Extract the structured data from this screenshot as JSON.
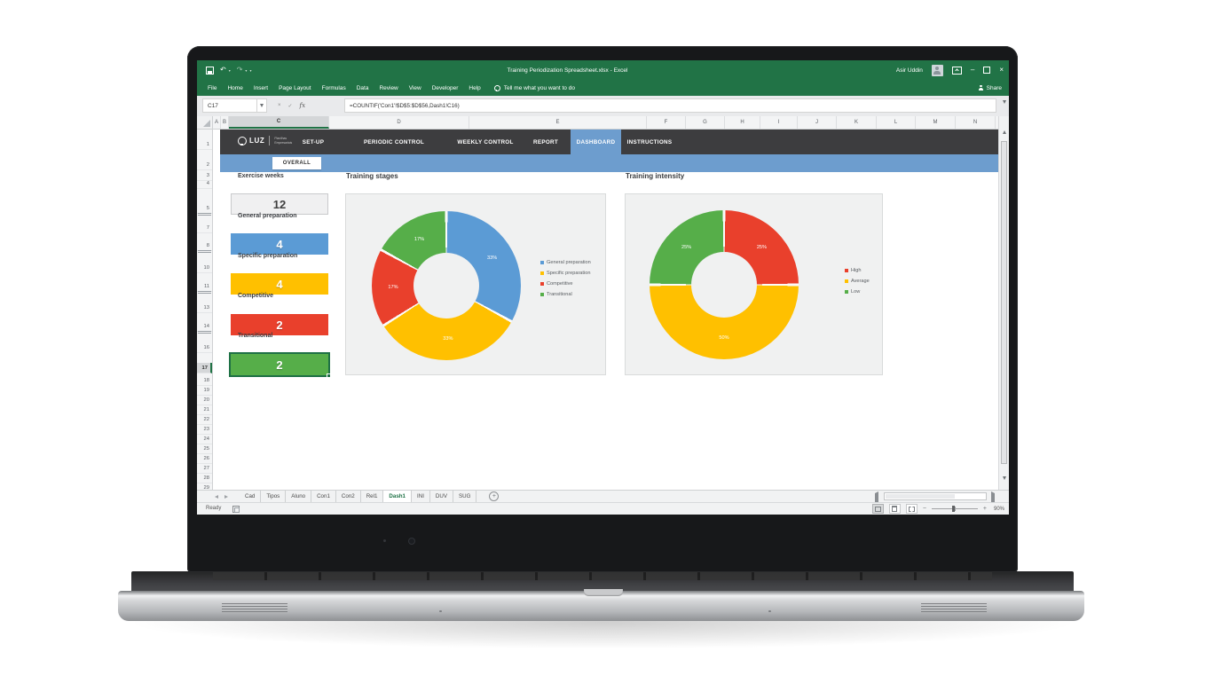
{
  "titlebar": {
    "title": "Training Periodization Spreadsheet.xlsx  -  Excel",
    "user": "Asir Uddin"
  },
  "ribbon": {
    "tabs": [
      "File",
      "Home",
      "Insert",
      "Page Layout",
      "Formulas",
      "Data",
      "Review",
      "View",
      "Developer",
      "Help"
    ],
    "tell_me": "Tell me what you want to do",
    "share": "Share"
  },
  "formula_bar": {
    "name_box": "C17",
    "fx": "fx",
    "formula": "=COUNTIF('Con1'!$D$5:$D$56,Dash1!C16)"
  },
  "grid": {
    "columns": [
      "A",
      "B",
      "C",
      "D",
      "E",
      "F",
      "G",
      "H",
      "I",
      "J",
      "K",
      "L",
      "M",
      "N"
    ],
    "rows": [
      "1",
      "2",
      "3",
      "4",
      "5",
      "7",
      "8",
      "10",
      "11",
      "13",
      "14",
      "16",
      "17",
      "18",
      "19",
      "20",
      "21",
      "22",
      "23",
      "24",
      "25",
      "26",
      "27",
      "28",
      "29"
    ],
    "selected_column": "C",
    "selected_row": "17",
    "hidden_after": [
      "5",
      "8",
      "11",
      "14"
    ]
  },
  "dashboard": {
    "brand": {
      "name": "LUZ",
      "sub_top": "Planilhas",
      "sub_bottom": "Empresariais"
    },
    "nav_tabs": [
      {
        "label": "SET-UP",
        "active": false
      },
      {
        "label": "PERIODIC CONTROL",
        "active": false
      },
      {
        "label": "WEEKLY CONTROL",
        "active": false
      },
      {
        "label": "REPORT",
        "active": false
      },
      {
        "label": "DASHBOARD",
        "active": true
      },
      {
        "label": "INSTRUCTIONS",
        "active": false
      }
    ],
    "active_tab_color": "#6D9DCE",
    "sub_tab": "OVERALL",
    "stats": [
      {
        "label": "Exercise weeks",
        "value": "12",
        "fill": "#f0f0f1",
        "text": "#3f3f3f",
        "selected": false
      },
      {
        "label": "General preparation",
        "value": "4",
        "fill": "#5B9BD5",
        "text": "#ffffff",
        "selected": false
      },
      {
        "label": "Specific preparation",
        "value": "4",
        "fill": "#FFC000",
        "text": "#ffffff",
        "selected": false
      },
      {
        "label": "Competitive",
        "value": "2",
        "fill": "#E9402C",
        "text": "#ffffff",
        "selected": false
      },
      {
        "label": "Transitional",
        "value": "2",
        "fill": "#56AE49",
        "text": "#ffffff",
        "selected": true
      }
    ]
  },
  "chart_data": [
    {
      "type": "donut",
      "title": "Training stages",
      "labels": [
        "General preparation",
        "Specific preparation",
        "Competitive",
        "Transitional"
      ],
      "values": [
        33,
        33,
        17,
        17
      ],
      "data_labels": [
        "33%",
        "33%",
        "17%",
        "17%"
      ],
      "colors": [
        "#5B9BD5",
        "#FFC000",
        "#E9402C",
        "#56AE49"
      ],
      "legend_position": "right"
    },
    {
      "type": "donut",
      "title": "Training intensity",
      "labels": [
        "High",
        "Average",
        "Low"
      ],
      "values": [
        25,
        50,
        25
      ],
      "data_labels": [
        "25%",
        "50%",
        "25%"
      ],
      "colors": [
        "#E9402C",
        "#FFC000",
        "#56AE49"
      ],
      "legend_position": "right"
    }
  ],
  "sheet_tabs": {
    "items": [
      "Cad",
      "Tipos",
      "Aluno",
      "Con1",
      "Con2",
      "Rel1",
      "Dash1",
      "INI",
      "DUV",
      "SUG"
    ],
    "active": "Dash1"
  },
  "status_bar": {
    "ready": "Ready",
    "zoom": "90%"
  }
}
